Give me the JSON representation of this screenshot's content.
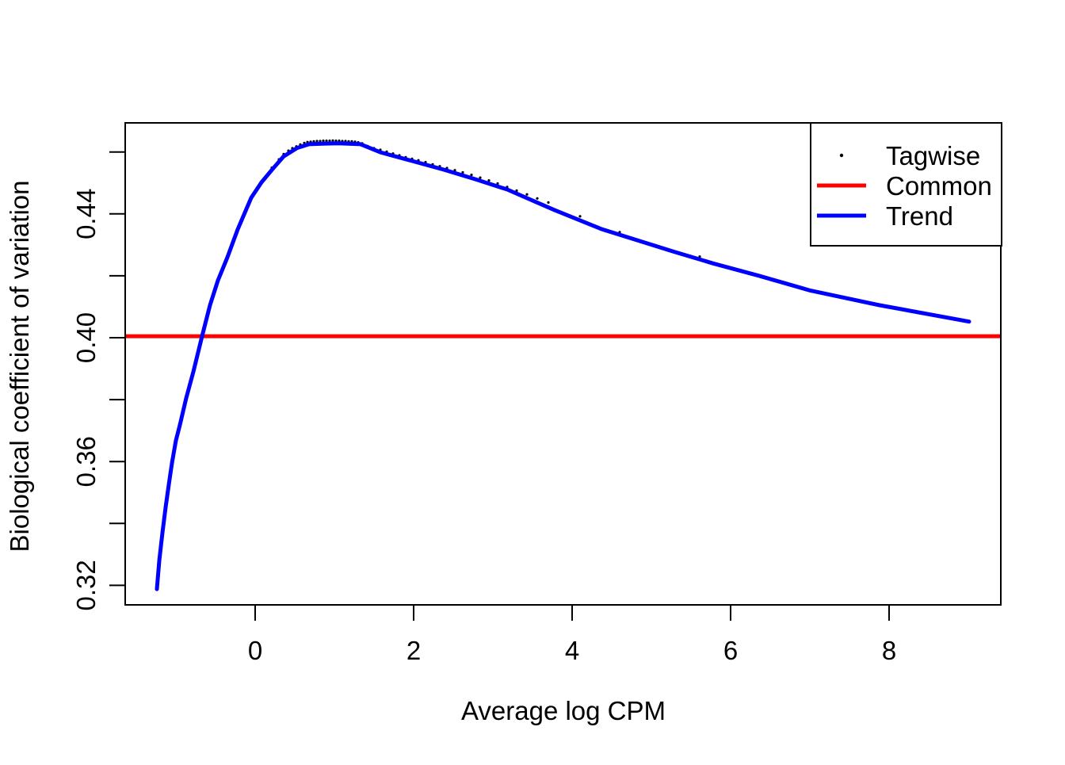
{
  "figure": {
    "background": "#FFFFFF",
    "axis_color": "#000000",
    "text_color": "#000000"
  },
  "chart_data": {
    "type": "line",
    "title": "",
    "xlabel": "Average log CPM",
    "ylabel": "Biological coefficient of variation",
    "xlim": [
      -1.64,
      9.41
    ],
    "ylim": [
      0.3137,
      0.4694
    ],
    "grid": false,
    "x_ticks": {
      "labeled": [
        0,
        2,
        4,
        6,
        8
      ]
    },
    "y_ticks": {
      "labeled": [
        0.32,
        0.36,
        0.4,
        0.44
      ],
      "minor": [
        0.34,
        0.38,
        0.42,
        0.46
      ]
    },
    "legend": {
      "position": "top-right",
      "entries": [
        {
          "label": "Tagwise",
          "symbol": "point",
          "color": "#000000"
        },
        {
          "label": "Common",
          "symbol": "line",
          "color": "#FF0000"
        },
        {
          "label": "Trend",
          "symbol": "line",
          "color": "#0000FF"
        }
      ]
    },
    "series": [
      {
        "name": "Tagwise",
        "type": "scatter",
        "color": "#000000",
        "points": [
          [
            0.14,
            0.4522
          ],
          [
            0.21,
            0.4549
          ],
          [
            0.3,
            0.4576
          ],
          [
            0.36,
            0.4593
          ],
          [
            0.42,
            0.4604
          ],
          [
            0.47,
            0.4612
          ],
          [
            0.52,
            0.4618
          ],
          [
            0.57,
            0.4624
          ],
          [
            0.62,
            0.4629
          ],
          [
            0.66,
            0.4632
          ],
          [
            0.7,
            0.4633
          ],
          [
            0.74,
            0.4634
          ],
          [
            0.78,
            0.4635
          ],
          [
            0.82,
            0.4635
          ],
          [
            0.86,
            0.4636
          ],
          [
            0.9,
            0.4636
          ],
          [
            0.94,
            0.4636
          ],
          [
            0.98,
            0.4637
          ],
          [
            1.02,
            0.4636
          ],
          [
            1.06,
            0.4636
          ],
          [
            1.1,
            0.4635
          ],
          [
            1.14,
            0.4635
          ],
          [
            1.18,
            0.4634
          ],
          [
            1.22,
            0.4634
          ],
          [
            1.26,
            0.4633
          ],
          [
            1.3,
            0.4631
          ],
          [
            1.35,
            0.4628
          ],
          [
            1.42,
            0.4619
          ],
          [
            1.5,
            0.4612
          ],
          [
            1.58,
            0.4607
          ],
          [
            1.66,
            0.4601
          ],
          [
            1.74,
            0.4595
          ],
          [
            1.82,
            0.4589
          ],
          [
            1.9,
            0.4583
          ],
          [
            1.98,
            0.4578
          ],
          [
            2.06,
            0.4573
          ],
          [
            2.15,
            0.4567
          ],
          [
            2.24,
            0.456
          ],
          [
            2.33,
            0.4554
          ],
          [
            2.42,
            0.4548
          ],
          [
            2.52,
            0.4541
          ],
          [
            2.62,
            0.4534
          ],
          [
            2.73,
            0.4526
          ],
          [
            2.84,
            0.4517
          ],
          [
            2.95,
            0.4508
          ],
          [
            3.06,
            0.4498
          ],
          [
            3.18,
            0.4487
          ],
          [
            3.3,
            0.4475
          ],
          [
            3.43,
            0.4463
          ],
          [
            3.56,
            0.445
          ],
          [
            3.7,
            0.4437
          ],
          [
            4.1,
            0.4392
          ],
          [
            4.6,
            0.4341
          ],
          [
            5.05,
            0.4299
          ],
          [
            5.61,
            0.4262
          ]
        ]
      },
      {
        "name": "Common",
        "type": "hline",
        "color": "#FF0000",
        "value": 0.4005
      },
      {
        "name": "Trend",
        "type": "line",
        "color": "#0000FF",
        "points": [
          [
            -1.24,
            0.3188
          ],
          [
            -1.21,
            0.328
          ],
          [
            -1.17,
            0.337
          ],
          [
            -1.13,
            0.3452
          ],
          [
            -1.09,
            0.3525
          ],
          [
            -1.05,
            0.3595
          ],
          [
            -1.0,
            0.3668
          ],
          [
            -0.95,
            0.3718
          ],
          [
            -0.87,
            0.3805
          ],
          [
            -0.78,
            0.389
          ],
          [
            -0.67,
            0.4005
          ],
          [
            -0.57,
            0.4105
          ],
          [
            -0.47,
            0.4185
          ],
          [
            -0.35,
            0.426
          ],
          [
            -0.22,
            0.435
          ],
          [
            -0.12,
            0.441
          ],
          [
            -0.05,
            0.4452
          ],
          [
            0.08,
            0.4502
          ],
          [
            0.21,
            0.4542
          ],
          [
            0.36,
            0.4586
          ],
          [
            0.53,
            0.4613
          ],
          [
            0.68,
            0.4625
          ],
          [
            0.85,
            0.4627
          ],
          [
            1.05,
            0.4628
          ],
          [
            1.33,
            0.4625
          ],
          [
            1.58,
            0.4599
          ],
          [
            1.98,
            0.4571
          ],
          [
            2.38,
            0.4543
          ],
          [
            2.78,
            0.4512
          ],
          [
            3.18,
            0.4479
          ],
          [
            3.78,
            0.4412
          ],
          [
            4.38,
            0.435
          ],
          [
            5.28,
            0.4278
          ],
          [
            5.78,
            0.424
          ],
          [
            6.36,
            0.42
          ],
          [
            7.01,
            0.4152
          ],
          [
            7.88,
            0.4105
          ],
          [
            9.01,
            0.4052
          ]
        ]
      }
    ]
  }
}
